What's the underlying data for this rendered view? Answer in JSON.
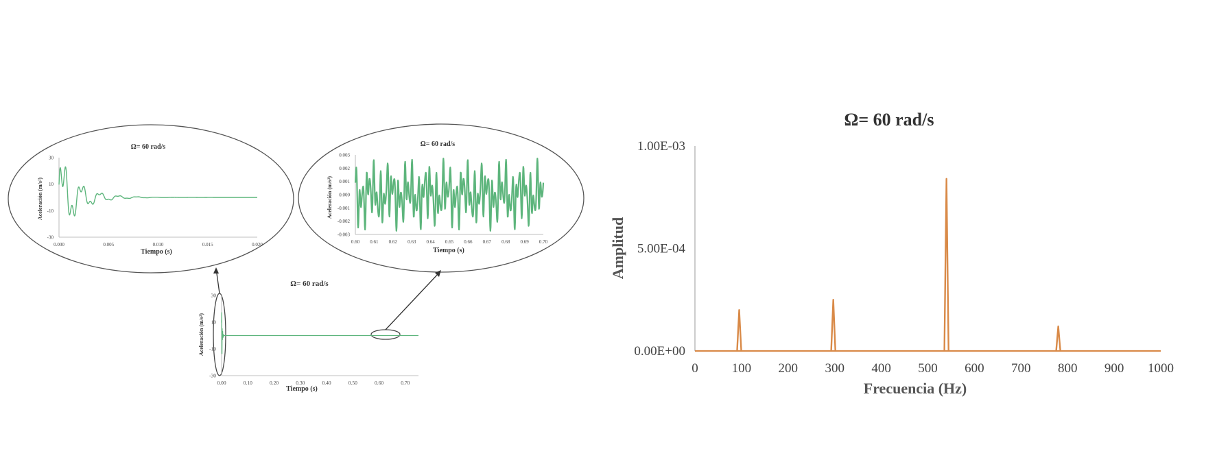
{
  "colors": {
    "time_series": "#5db57c",
    "spectrum": "#d98a48",
    "axis": "#aaaaaa",
    "ellipse": "#555555",
    "text": "#333333"
  },
  "chart_data": [
    {
      "id": "time-main",
      "type": "line",
      "title": "Ω= 60 rad/s",
      "xlabel": "Tiempo (s)",
      "ylabel": "Aceleración (m/s²)",
      "xlim": [
        0,
        0.75
      ],
      "ylim": [
        -30,
        30
      ],
      "xticks": [
        0,
        0.1,
        0.2,
        0.3,
        0.4,
        0.5,
        0.6,
        0.7
      ],
      "xtick_labels": [
        "0.00",
        "0.10",
        "0.20",
        "0.30",
        "0.40",
        "0.50",
        "0.60",
        "0.70"
      ],
      "yticks": [
        -30,
        -10,
        10,
        30
      ],
      "ytick_labels": [
        "-30",
        "-10",
        "10",
        "30"
      ],
      "signal": {
        "kind": "decay",
        "amplitude": 25,
        "decay_time": 0.002,
        "frequency_hz": 540,
        "t_start": 0,
        "t_end": 0.75
      },
      "series": [
        {
          "values_description": "",
          "points": []
        }
      ]
    },
    {
      "id": "time-zoom-start",
      "type": "line",
      "title": "Ω= 60 rad/s",
      "xlabel": "Tiempo (s)",
      "ylabel": "Aceleración (m/s²)",
      "xlim": [
        0,
        0.02
      ],
      "ylim": [
        -30,
        30
      ],
      "xticks": [
        0,
        0.005,
        0.01,
        0.015,
        0.02
      ],
      "xtick_labels": [
        "0.000",
        "0.005",
        "0.010",
        "0.015",
        "0.020"
      ],
      "yticks": [
        -30,
        -10,
        10,
        30
      ],
      "ytick_labels": [
        "-30",
        "-10",
        "10",
        "30"
      ],
      "signal": {
        "kind": "decay",
        "amplitude": 25,
        "decay_time": 0.002,
        "frequency_hz": 540,
        "t_start": 0,
        "t_end": 0.02
      }
    },
    {
      "id": "time-zoom-end",
      "type": "line",
      "title": "Ω= 60 rad/s",
      "xlabel": "Tiempo (s)",
      "ylabel": "Aceleración (m/s²)",
      "xlim": [
        0.6,
        0.7
      ],
      "ylim": [
        -0.003,
        0.003
      ],
      "xticks": [
        0.6,
        0.61,
        0.62,
        0.63,
        0.64,
        0.65,
        0.66,
        0.67,
        0.68,
        0.69,
        0.7
      ],
      "xtick_labels": [
        "0.60",
        "0.61",
        "0.62",
        "0.63",
        "0.64",
        "0.65",
        "0.66",
        "0.67",
        "0.68",
        "0.69",
        "0.70"
      ],
      "yticks": [
        -0.003,
        -0.002,
        -0.001,
        0,
        0.001,
        0.002,
        0.003
      ],
      "ytick_labels": [
        "-0.003",
        "-0.002",
        "-0.001",
        "0.000",
        "0.001",
        "0.002",
        "0.003"
      ],
      "signal": {
        "kind": "steady",
        "components": [
          [
            0.0012,
            540
          ],
          [
            0.0009,
            300
          ],
          [
            0.0006,
            100
          ],
          [
            0.0004,
            780
          ]
        ],
        "t_start": 0.6,
        "t_end": 0.7
      }
    },
    {
      "id": "spectrum",
      "type": "line",
      "title": "Ω= 60 rad/s",
      "xlabel": "Frecuencia (Hz)",
      "ylabel": "Amplitud",
      "xlim": [
        0,
        1000
      ],
      "ylim": [
        0,
        0.001
      ],
      "xticks": [
        0,
        100,
        200,
        300,
        400,
        500,
        600,
        700,
        800,
        900,
        1000
      ],
      "xtick_labels": [
        "0",
        "100",
        "200",
        "300",
        "400",
        "500",
        "600",
        "700",
        "800",
        "900",
        "1000"
      ],
      "yticks": [
        0,
        0.0005,
        0.001
      ],
      "ytick_labels": [
        "0.00E+00",
        "5.00E-04",
        "1.00E-03"
      ],
      "peaks": [
        {
          "x": 95,
          "y": 0.0002
        },
        {
          "x": 297,
          "y": 0.00025
        },
        {
          "x": 540,
          "y": 0.00084
        },
        {
          "x": 780,
          "y": 0.00012
        }
      ]
    }
  ]
}
